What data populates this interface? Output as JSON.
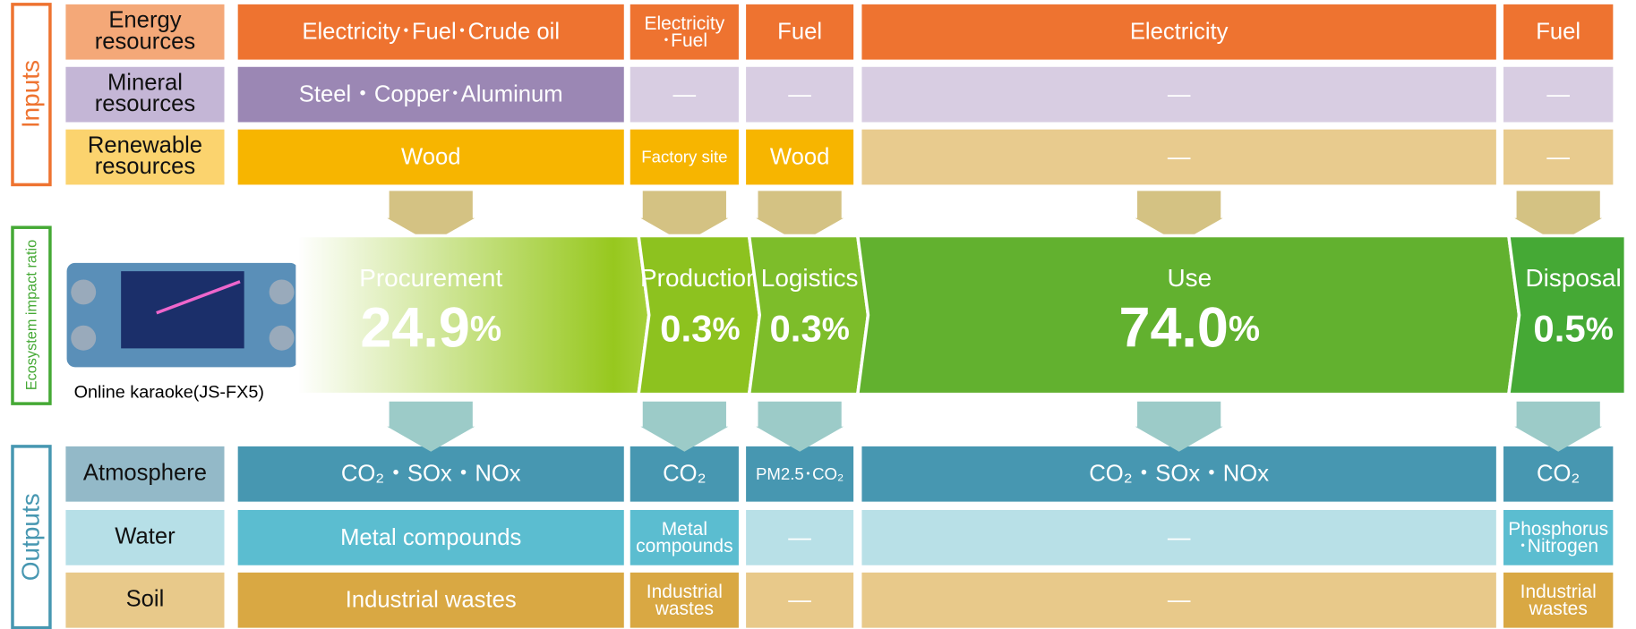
{
  "side_labels": {
    "inputs": "Inputs",
    "impact": "Ecosystem impact ratio",
    "outputs": "Outputs"
  },
  "product": {
    "caption": "Online karaoke(JS-FX5)"
  },
  "stages": [
    {
      "name": "Procurement",
      "value": "24.9",
      "unit": "%",
      "color": "#97c81e"
    },
    {
      "name": "Production",
      "value": "0.3",
      "unit": "%",
      "color": "#8dc21f"
    },
    {
      "name": "Logistics",
      "value": "0.3",
      "unit": "%",
      "color": "#7dbd2a"
    },
    {
      "name": "Use",
      "value": "74.0",
      "unit": "%",
      "color": "#62b12f"
    },
    {
      "name": "Disposal",
      "value": "0.5",
      "unit": "%",
      "color": "#45a935"
    }
  ],
  "inputs": [
    {
      "label": [
        "Energy",
        "resources"
      ],
      "label_color": "#f4a878",
      "cells": [
        {
          "text": [
            "Electricity･Fuel･Crude oil"
          ],
          "color": "#ee7330"
        },
        {
          "text": [
            "Electricity",
            "･Fuel"
          ],
          "color": "#ee7330"
        },
        {
          "text": [
            "Fuel"
          ],
          "color": "#ee7330"
        },
        {
          "text": [
            "Electricity"
          ],
          "color": "#ee7330"
        },
        {
          "text": [
            "Fuel"
          ],
          "color": "#ee7330"
        }
      ]
    },
    {
      "label": [
        "Mineral",
        "resources"
      ],
      "label_color": "#c4b6d6",
      "cells": [
        {
          "text": [
            "Steel・Copper･Aluminum"
          ],
          "color": "#9b87b4"
        },
        {
          "text": [
            "—"
          ],
          "color": "#d8cde2"
        },
        {
          "text": [
            "—"
          ],
          "color": "#d8cde2"
        },
        {
          "text": [
            "—"
          ],
          "color": "#d8cde2"
        },
        {
          "text": [
            "—"
          ],
          "color": "#d8cde2"
        }
      ]
    },
    {
      "label": [
        "Renewable",
        "resources"
      ],
      "label_color": "#fbd36e",
      "cells": [
        {
          "text": [
            "Wood"
          ],
          "color": "#f7b500"
        },
        {
          "text": [
            "Factory site"
          ],
          "color": "#f7b500"
        },
        {
          "text": [
            "Wood"
          ],
          "color": "#f7b500"
        },
        {
          "text": [
            "—"
          ],
          "color": "#e8cb8e"
        },
        {
          "text": [
            "—"
          ],
          "color": "#e8cb8e"
        }
      ]
    }
  ],
  "outputs": [
    {
      "label": [
        "Atmosphere"
      ],
      "label_color": "#93b9c8",
      "cells": [
        {
          "text": [
            "CO₂・SOx・NOx"
          ],
          "color": "#4797b1"
        },
        {
          "text": [
            "CO₂"
          ],
          "color": "#4797b1"
        },
        {
          "text": [
            "PM2.5･CO₂"
          ],
          "color": "#4797b1"
        },
        {
          "text": [
            "CO₂・SOx・NOx"
          ],
          "color": "#4797b1"
        },
        {
          "text": [
            "CO₂"
          ],
          "color": "#4797b1"
        }
      ]
    },
    {
      "label": [
        "Water"
      ],
      "label_color": "#b6dfe7",
      "cells": [
        {
          "text": [
            "Metal compounds"
          ],
          "color": "#5bbdd0"
        },
        {
          "text": [
            "Metal",
            "compounds"
          ],
          "color": "#5bbdd0"
        },
        {
          "text": [
            "—"
          ],
          "color": "#b8e0e7"
        },
        {
          "text": [
            "—"
          ],
          "color": "#b8e0e7"
        },
        {
          "text": [
            "Phosphorus",
            "･Nitrogen"
          ],
          "color": "#5bbdd0"
        }
      ]
    },
    {
      "label": [
        "Soil"
      ],
      "label_color": "#e8c98a",
      "cells": [
        {
          "text": [
            "Industrial wastes"
          ],
          "color": "#d9a843"
        },
        {
          "text": [
            "Industrial",
            "wastes"
          ],
          "color": "#d9a843"
        },
        {
          "text": [
            "—"
          ],
          "color": "#e8c98a"
        },
        {
          "text": [
            "—"
          ],
          "color": "#e8c98a"
        },
        {
          "text": [
            "Industrial",
            "wastes"
          ],
          "color": "#d9a843"
        }
      ]
    }
  ]
}
